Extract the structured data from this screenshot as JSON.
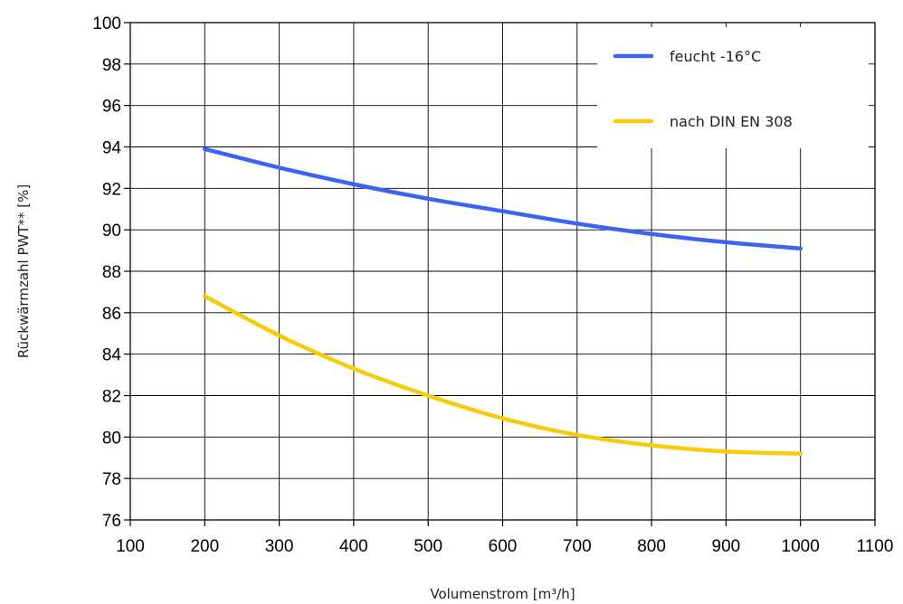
{
  "chart_data": {
    "type": "line",
    "title": "",
    "xlabel": "Volumenstrom [m³/h]",
    "ylabel": "Rückwärmzahl PWT** [%]",
    "xlim": [
      100,
      1100
    ],
    "ylim": [
      76,
      100
    ],
    "x_ticks": [
      "100",
      "200",
      "300",
      "400",
      "500",
      "600",
      "700",
      "800",
      "900",
      "1000",
      "1100"
    ],
    "y_ticks": [
      "76",
      "78",
      "80",
      "82",
      "84",
      "86",
      "88",
      "90",
      "92",
      "94",
      "96",
      "98",
      "100"
    ],
    "grid": true,
    "legend_position": "top-right",
    "series": [
      {
        "name": "feucht -16°C",
        "color": "#3c64ee",
        "x": [
          200,
          300,
          400,
          500,
          600,
          700,
          800,
          900,
          1000
        ],
        "y": [
          93.9,
          93.0,
          92.2,
          91.5,
          90.9,
          90.3,
          89.8,
          89.4,
          89.1
        ]
      },
      {
        "name": "nach DIN EN 308",
        "color": "#f6cc0a",
        "x": [
          200,
          300,
          400,
          500,
          600,
          700,
          800,
          900,
          1000
        ],
        "y": [
          86.8,
          84.9,
          83.3,
          82.0,
          80.9,
          80.1,
          79.6,
          79.3,
          79.2
        ]
      }
    ]
  }
}
